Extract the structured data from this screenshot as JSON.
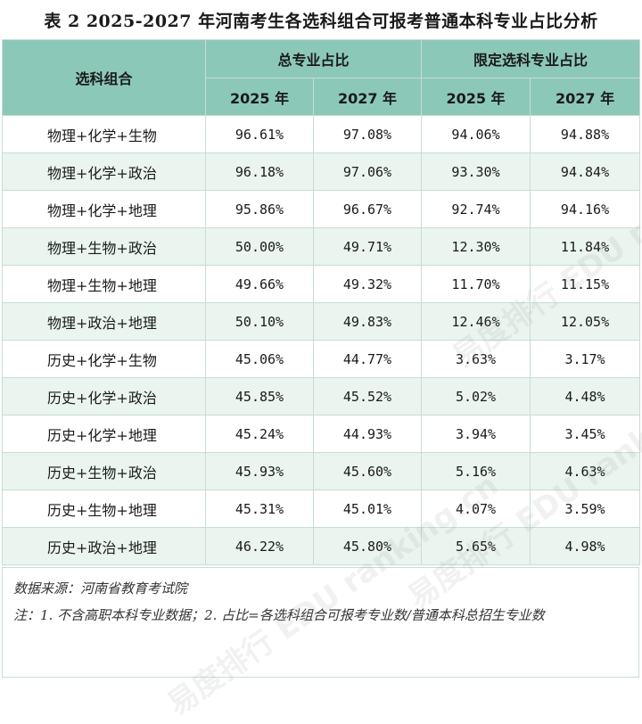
{
  "title": "表 2  2025-2027 年河南考生各选科组合可报考普通本科专业占比分析",
  "header": {
    "combo_label": "选科组合",
    "group_total": "总专业占比",
    "group_limited": "限定选科专业占比",
    "years": [
      "2025 年",
      "2027 年",
      "2025 年",
      "2027 年"
    ]
  },
  "rows": [
    {
      "combo": "物理+化学+生物",
      "v": [
        "96.61%",
        "97.08%",
        "94.06%",
        "94.88%"
      ]
    },
    {
      "combo": "物理+化学+政治",
      "v": [
        "96.18%",
        "97.06%",
        "93.30%",
        "94.84%"
      ]
    },
    {
      "combo": "物理+化学+地理",
      "v": [
        "95.86%",
        "96.67%",
        "92.74%",
        "94.16%"
      ]
    },
    {
      "combo": "物理+生物+政治",
      "v": [
        "50.00%",
        "49.71%",
        "12.30%",
        "11.84%"
      ]
    },
    {
      "combo": "物理+生物+地理",
      "v": [
        "49.66%",
        "49.32%",
        "11.70%",
        "11.15%"
      ]
    },
    {
      "combo": "物理+政治+地理",
      "v": [
        "50.10%",
        "49.83%",
        "12.46%",
        "12.05%"
      ]
    },
    {
      "combo": "历史+化学+生物",
      "v": [
        "45.06%",
        "44.77%",
        "3.63%",
        "3.17%"
      ]
    },
    {
      "combo": "历史+化学+政治",
      "v": [
        "45.85%",
        "45.52%",
        "5.02%",
        "4.48%"
      ]
    },
    {
      "combo": "历史+化学+地理",
      "v": [
        "45.24%",
        "44.93%",
        "3.94%",
        "3.45%"
      ]
    },
    {
      "combo": "历史+生物+政治",
      "v": [
        "45.93%",
        "45.60%",
        "5.16%",
        "4.63%"
      ]
    },
    {
      "combo": "历史+生物+地理",
      "v": [
        "45.31%",
        "45.01%",
        "4.07%",
        "3.59%"
      ]
    },
    {
      "combo": "历史+政治+地理",
      "v": [
        "46.22%",
        "45.80%",
        "5.65%",
        "4.98%"
      ]
    }
  ],
  "notes": {
    "source": "数据来源：河南省教育考试院",
    "note": "注：1. 不含高职本科专业数据；2. 占比=各选科组合可报考专业数/普通本科总招生专业数"
  },
  "watermark": "易度排行 EDU ranking.cn",
  "colors": {
    "header_bg": "#8cc8b8",
    "stripe_bg": "#eaf5ef",
    "border": "#c8dcd4"
  }
}
